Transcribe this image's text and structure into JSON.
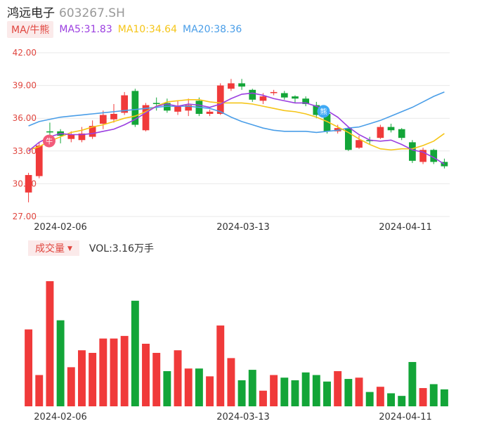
{
  "header": {
    "name": "鸿远电子",
    "code": "603267.SH"
  },
  "legend": {
    "ma_button": "MA/牛熊",
    "ma5": "MA5:31.83",
    "ma10": "MA10:34.64",
    "ma20": "MA20:38.36"
  },
  "volume_header": {
    "button": "成交量",
    "vol": "VOL:3.16万手"
  },
  "colors": {
    "up": "#f03a3a",
    "down": "#13a538",
    "ma5": "#9b3fe0",
    "ma10": "#f5c518",
    "ma20": "#4a9ee8",
    "axis": "#e0463f"
  },
  "chart_data": [
    {
      "type": "candlestick",
      "yticks": [
        "42.00",
        "39.00",
        "36.00",
        "33.00",
        "30.00",
        "27.00"
      ],
      "ylim": [
        27,
        42
      ],
      "xticks": [
        "2024-02-06",
        "2024-03-13",
        "2024-04-11"
      ],
      "markers": {
        "bull": "牛",
        "bear": "熊"
      },
      "candles": [
        {
          "o": 29.2,
          "c": 30.8,
          "h": 31.0,
          "l": 28.3
        },
        {
          "o": 30.7,
          "c": 33.5,
          "h": 33.8,
          "l": 30.5
        },
        {
          "o": 34.8,
          "c": 34.7,
          "h": 35.6,
          "l": 34.3
        },
        {
          "o": 34.8,
          "c": 34.4,
          "h": 35.0,
          "l": 33.7
        },
        {
          "o": 34.1,
          "c": 34.5,
          "h": 34.8,
          "l": 33.8
        },
        {
          "o": 34.0,
          "c": 34.6,
          "h": 35.2,
          "l": 33.8
        },
        {
          "o": 34.3,
          "c": 35.3,
          "h": 35.8,
          "l": 34.1
        },
        {
          "o": 35.5,
          "c": 36.3,
          "h": 36.7,
          "l": 35.0
        },
        {
          "o": 35.9,
          "c": 36.4,
          "h": 37.3,
          "l": 35.6
        },
        {
          "o": 36.5,
          "c": 38.1,
          "h": 38.4,
          "l": 36.3
        },
        {
          "o": 38.5,
          "c": 35.4,
          "h": 38.7,
          "l": 35.2
        },
        {
          "o": 34.9,
          "c": 37.2,
          "h": 37.4,
          "l": 34.8
        },
        {
          "o": 37.4,
          "c": 37.3,
          "h": 37.9,
          "l": 36.7
        },
        {
          "o": 37.4,
          "c": 36.7,
          "h": 37.8,
          "l": 36.5
        },
        {
          "o": 36.6,
          "c": 37.1,
          "h": 37.6,
          "l": 36.3
        },
        {
          "o": 36.7,
          "c": 37.2,
          "h": 37.8,
          "l": 36.2
        },
        {
          "o": 37.6,
          "c": 36.4,
          "h": 37.9,
          "l": 36.2
        },
        {
          "o": 36.4,
          "c": 36.6,
          "h": 36.8,
          "l": 36.2
        },
        {
          "o": 36.4,
          "c": 39.0,
          "h": 39.2,
          "l": 36.3
        },
        {
          "o": 38.7,
          "c": 39.2,
          "h": 39.6,
          "l": 38.5
        },
        {
          "o": 39.2,
          "c": 38.9,
          "h": 39.6,
          "l": 38.6
        },
        {
          "o": 38.6,
          "c": 37.7,
          "h": 38.7,
          "l": 37.5
        },
        {
          "o": 37.6,
          "c": 38.0,
          "h": 38.3,
          "l": 37.3
        },
        {
          "o": 38.3,
          "c": 38.4,
          "h": 38.6,
          "l": 38.1
        },
        {
          "o": 38.3,
          "c": 37.9,
          "h": 38.5,
          "l": 37.7
        },
        {
          "o": 38.0,
          "c": 37.8,
          "h": 38.1,
          "l": 37.4
        },
        {
          "o": 37.8,
          "c": 37.3,
          "h": 38.0,
          "l": 37.1
        },
        {
          "o": 37.2,
          "c": 36.3,
          "h": 37.5,
          "l": 36.0
        },
        {
          "o": 36.4,
          "c": 34.8,
          "h": 36.5,
          "l": 34.6
        },
        {
          "o": 34.8,
          "c": 35.1,
          "h": 35.4,
          "l": 34.6
        },
        {
          "o": 35.1,
          "c": 33.1,
          "h": 35.2,
          "l": 33.0
        },
        {
          "o": 33.3,
          "c": 34.0,
          "h": 34.4,
          "l": 33.2
        },
        {
          "o": 34.0,
          "c": 33.9,
          "h": 34.3,
          "l": 33.6
        },
        {
          "o": 34.2,
          "c": 35.2,
          "h": 35.4,
          "l": 34.1
        },
        {
          "o": 35.2,
          "c": 34.9,
          "h": 35.5,
          "l": 34.7
        },
        {
          "o": 35.0,
          "c": 34.2,
          "h": 35.1,
          "l": 34.0
        },
        {
          "o": 33.8,
          "c": 32.1,
          "h": 34.0,
          "l": 31.9
        },
        {
          "o": 32.0,
          "c": 33.1,
          "h": 33.3,
          "l": 31.8
        },
        {
          "o": 33.1,
          "c": 32.0,
          "h": 33.2,
          "l": 31.8
        },
        {
          "o": 32.0,
          "c": 31.6,
          "h": 32.3,
          "l": 31.4
        }
      ],
      "ma5": [
        33.0,
        33.8,
        34.3,
        34.6,
        34.5,
        34.5,
        34.6,
        34.8,
        35.0,
        35.4,
        35.9,
        36.5,
        37.1,
        37.3,
        37.1,
        37.3,
        37.2,
        37.0,
        37.3,
        37.8,
        38.2,
        38.3,
        38.1,
        37.8,
        37.6,
        37.4,
        37.4,
        37.1,
        36.7,
        36.1,
        35.2,
        34.5,
        34.0,
        33.9,
        34.0,
        33.6,
        33.1,
        32.9,
        32.4,
        31.8
      ],
      "ma10": [
        33.1,
        33.4,
        33.9,
        34.3,
        34.7,
        34.9,
        35.2,
        35.4,
        35.7,
        36.0,
        36.2,
        36.6,
        37.1,
        37.5,
        37.6,
        37.7,
        37.7,
        37.5,
        37.4,
        37.4,
        37.4,
        37.3,
        37.1,
        36.9,
        36.7,
        36.6,
        36.4,
        36.1,
        35.7,
        35.2,
        34.7,
        34.1,
        33.6,
        33.2,
        33.1,
        33.2,
        33.2,
        33.5,
        33.9,
        34.6
      ],
      "ma20": [
        35.3,
        35.7,
        35.9,
        36.1,
        36.2,
        36.3,
        36.4,
        36.5,
        36.6,
        36.7,
        36.8,
        36.9,
        37.0,
        37.1,
        37.1,
        37.1,
        37.0,
        36.9,
        36.6,
        36.1,
        35.7,
        35.4,
        35.1,
        34.9,
        34.8,
        34.8,
        34.8,
        34.7,
        34.8,
        34.9,
        35.1,
        35.2,
        35.5,
        35.8,
        36.2,
        36.6,
        37.0,
        37.5,
        38.0,
        38.4
      ],
      "markers_at": {
        "bull": 2,
        "bear": 28
      }
    },
    {
      "type": "bar",
      "title": "成交量",
      "values": [
        5.9,
        2.4,
        9.6,
        6.6,
        3.0,
        4.3,
        4.1,
        5.2,
        5.2,
        5.4,
        8.1,
        4.8,
        4.1,
        2.7,
        4.3,
        2.9,
        2.9,
        2.3,
        6.2,
        3.7,
        2.0,
        2.8,
        1.2,
        2.4,
        2.2,
        2.0,
        2.6,
        2.4,
        1.9,
        2.7,
        2.1,
        2.2,
        1.1,
        1.5,
        1.0,
        0.8,
        3.4,
        1.4,
        1.7,
        1.3
      ],
      "directions": [
        "up",
        "up",
        "up",
        "down",
        "up",
        "up",
        "up",
        "up",
        "up",
        "up",
        "down",
        "up",
        "up",
        "down",
        "up",
        "up",
        "down",
        "up",
        "up",
        "up",
        "down",
        "down",
        "up",
        "up",
        "down",
        "down",
        "down",
        "down",
        "down",
        "up",
        "down",
        "up",
        "down",
        "up",
        "down",
        "down",
        "down",
        "up",
        "down",
        "down"
      ]
    }
  ]
}
